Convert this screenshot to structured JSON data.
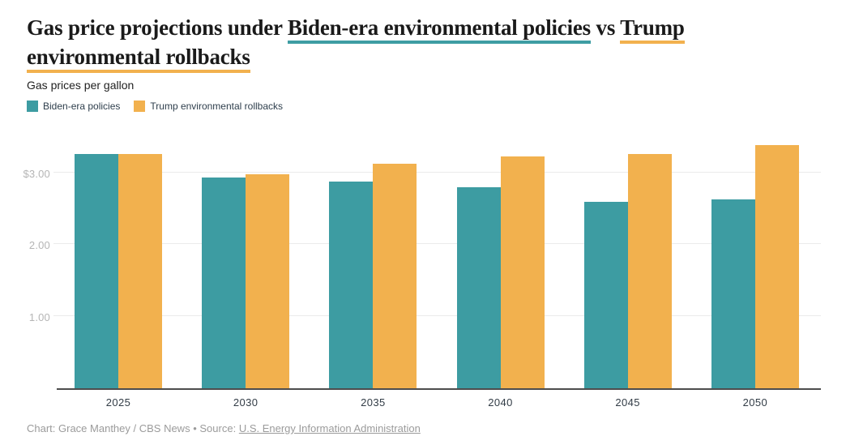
{
  "title": {
    "pre": "Gas price projections under ",
    "biden_phrase": "Biden-era environmental policies",
    "middle": " vs ",
    "trump_phrase": "Trump environmental rollbacks"
  },
  "subtitle": "Gas prices per gallon",
  "legend": {
    "items": [
      {
        "label": "Biden-era policies",
        "color": "#3D9CA2"
      },
      {
        "label": "Trump environmental rollbacks",
        "color": "#F2B14E"
      }
    ]
  },
  "chart_data": {
    "type": "bar",
    "title": "Gas price projections under Biden-era environmental policies vs Trump environmental rollbacks",
    "subtitle": "Gas prices per gallon",
    "categories": [
      "2025",
      "2030",
      "2035",
      "2040",
      "2045",
      "2050"
    ],
    "series": [
      {
        "name": "Biden-era policies",
        "color": "#3D9CA2",
        "values": [
          3.25,
          2.93,
          2.87,
          2.79,
          2.59,
          2.62
        ]
      },
      {
        "name": "Trump environmental rollbacks",
        "color": "#F2B14E",
        "values": [
          3.25,
          2.97,
          3.12,
          3.22,
          3.25,
          3.38
        ]
      }
    ],
    "xlabel": "",
    "ylabel": "Gas prices per gallon ($)",
    "ylim": [
      0,
      3.7
    ],
    "y_ticks": [
      {
        "value": 3,
        "label": "$3.00"
      },
      {
        "value": 2,
        "label": "2.00"
      },
      {
        "value": 1,
        "label": "1.00"
      }
    ],
    "grid": "horizontal",
    "legend_position": "top-left"
  },
  "colors": {
    "biden_teal": "#3D9CA2",
    "trump_orange": "#F2B14E",
    "title_text": "#1a1a1a",
    "axis_label_light": "#b5b5b5",
    "axis_label_dark": "#323c46",
    "gridline": "#ebebeb",
    "baseline": "#4d4d4d",
    "footer_text": "#9b9b9b"
  },
  "footer": {
    "credit": "Chart: Grace Manthey / CBS News",
    "separator": "•",
    "source_label": "Source:",
    "source_link_text": "U.S. Energy Information Administration"
  }
}
